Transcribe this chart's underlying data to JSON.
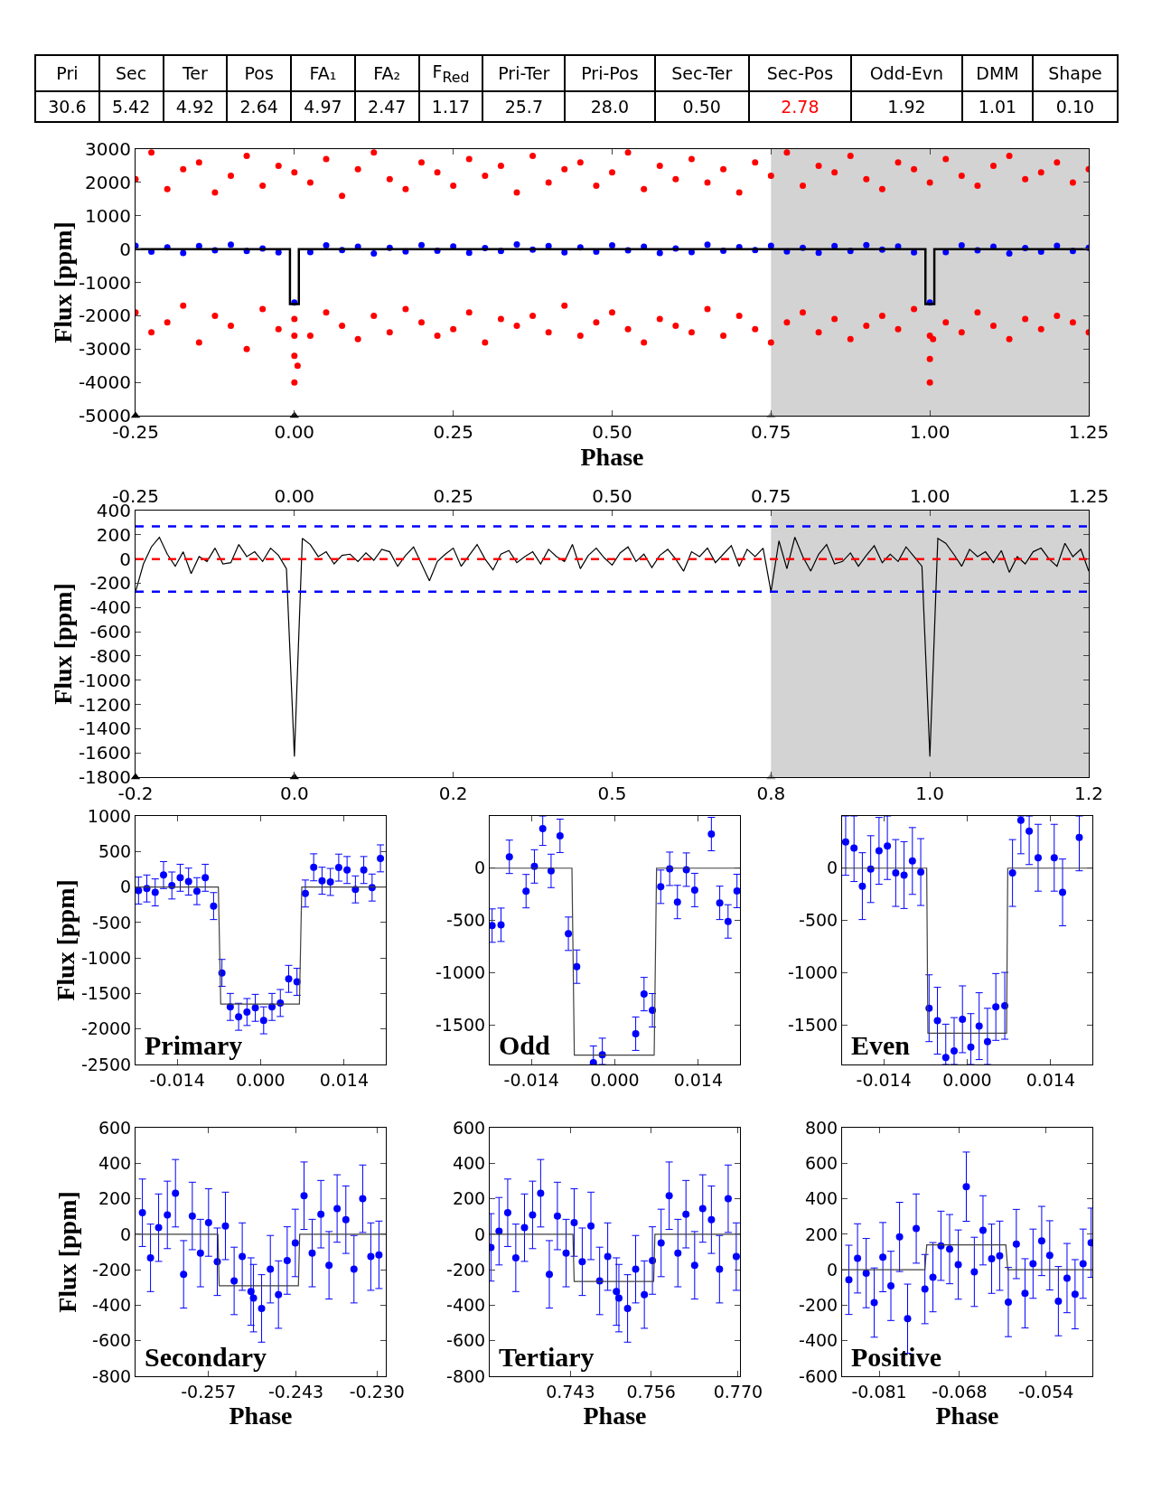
{
  "chart_data": [
    {
      "type": "other",
      "categories": [
        "Pri",
        "Sec",
        "Ter",
        "Pos",
        "FA₁",
        "FA₂",
        "F$_{Red}$",
        "Pri-Ter",
        "Pri-Pos",
        "Sec-Ter",
        "Sec-Pos",
        "Odd-Evn",
        "DMM",
        "Shape"
      ],
      "value_labels": [
        "30.6",
        "5.42",
        "4.92",
        "2.64",
        "4.97",
        "2.47",
        "1.17",
        "25.7",
        "28.0",
        "0.50",
        "2.78",
        "1.92",
        "1.01",
        "0.10"
      ],
      "colors": [
        "#000000",
        "#000000",
        "#000000",
        "#000000",
        "#000000",
        "#000000",
        "#000000",
        "#000000",
        "#000000",
        "#000000",
        "#ff0000",
        "#000000",
        "#000000",
        "#000000"
      ]
    },
    {
      "type": "scatter",
      "xlabel": "Phase",
      "ylabel": "Flux [ppm]",
      "xlim": [
        -0.25,
        1.25
      ],
      "ylim": [
        -5000,
        3000
      ],
      "xticks": [
        -0.25,
        {
          "value": 0,
          "label": "0.00"
        },
        0.25,
        {
          "value": 0.5,
          "label": "0.50"
        },
        0.75,
        {
          "value": 1,
          "label": "1.00"
        },
        1.25
      ],
      "yticks": [
        -5000,
        -4000,
        -3000,
        -2000,
        -1000,
        0,
        1000,
        2000,
        3000
      ],
      "bands": [
        {
          "axis": "x",
          "from": 0.75,
          "to": 1.25,
          "color": "#d3d3d3"
        }
      ],
      "series": [
        {
          "type": "scatter",
          "marker": "circle",
          "color": "#ff0000",
          "x": [
            -0.25,
            -0.225,
            -0.2,
            -0.175,
            -0.15,
            -0.125,
            -0.1,
            -0.075,
            -0.05,
            -0.025,
            0,
            0.025,
            0.05,
            0.075,
            0.1,
            0.125,
            0.15,
            0.175,
            0.2,
            0.225,
            0.25,
            0.275,
            0.3,
            0.325,
            0.35,
            0.375,
            0.4,
            0.425,
            0.45,
            0.475,
            0.5,
            0.525,
            0.55,
            0.575,
            0.6,
            0.625,
            0.65,
            0.675,
            0.7,
            0.725,
            0.75,
            0.775,
            0.8,
            0.825,
            0.85,
            0.875,
            0.9,
            0.925,
            0.95,
            0.975,
            1,
            1.025,
            1.05,
            1.075,
            1.1,
            1.125,
            1.15,
            1.175,
            1.2,
            1.225,
            1.25,
            -0.25,
            -0.225,
            -0.2,
            -0.175,
            -0.15,
            -0.125,
            -0.1,
            -0.075,
            -0.05,
            -0.025,
            0,
            0.025,
            0.05,
            0.075,
            0.1,
            0.125,
            0.15,
            0.175,
            0.2,
            0.225,
            0.25,
            0.275,
            0.3,
            0.325,
            0.35,
            0.375,
            0.4,
            0.425,
            0.45,
            0.475,
            0.5,
            0.525,
            0.55,
            0.575,
            0.6,
            0.625,
            0.65,
            0.675,
            0.7,
            0.725,
            0.75,
            0.775,
            0.8,
            0.825,
            0.85,
            0.875,
            0.9,
            0.925,
            0.95,
            0.975,
            1,
            1.025,
            1.05,
            1.075,
            1.1,
            1.125,
            1.15,
            1.175,
            1.2,
            1.225,
            1.25,
            0,
            0,
            0,
            0.005,
            1,
            1,
            1.005
          ],
          "values": [
            2100,
            2900,
            1800,
            2400,
            2600,
            1700,
            2200,
            2800,
            1900,
            2500,
            2300,
            2000,
            2700,
            1600,
            2400,
            2900,
            2100,
            1800,
            2600,
            2300,
            1900,
            2700,
            2200,
            2500,
            1700,
            2800,
            2000,
            2400,
            2600,
            1900,
            2300,
            2900,
            1800,
            2500,
            2100,
            2700,
            2000,
            2400,
            1700,
            2600,
            2200,
            2900,
            1900,
            2500,
            2300,
            2800,
            2100,
            1800,
            2600,
            2400,
            2000,
            2700,
            2200,
            1900,
            2500,
            2800,
            2100,
            2300,
            2600,
            2000,
            2400,
            -1900,
            -2500,
            -2200,
            -1700,
            -2800,
            -2000,
            -2300,
            -3000,
            -1800,
            -2400,
            -2100,
            -2600,
            -1900,
            -2300,
            -2700,
            -2000,
            -2500,
            -1800,
            -2200,
            -2600,
            -2400,
            -1900,
            -2800,
            -2100,
            -2300,
            -2000,
            -2500,
            -1700,
            -2600,
            -2200,
            -1900,
            -2400,
            -2800,
            -2100,
            -2300,
            -2500,
            -1800,
            -2600,
            -2000,
            -2400,
            -2800,
            -2200,
            -1900,
            -2500,
            -2100,
            -2700,
            -2300,
            -2000,
            -2400,
            -1800,
            -2600,
            -2200,
            -2500,
            -1900,
            -2300,
            -2700,
            -2100,
            -2400,
            -2000,
            -2200,
            -2500,
            -4000,
            -3200,
            -2600,
            -3500,
            -4000,
            -3300,
            -2700
          ]
        },
        {
          "type": "scatter",
          "marker": "circle",
          "color": "#0000ff",
          "x": [
            -0.25,
            -0.225,
            -0.2,
            -0.175,
            -0.15,
            -0.125,
            -0.1,
            -0.075,
            -0.05,
            -0.025,
            0,
            0.025,
            0.05,
            0.075,
            0.1,
            0.125,
            0.15,
            0.175,
            0.2,
            0.225,
            0.25,
            0.275,
            0.3,
            0.325,
            0.35,
            0.375,
            0.4,
            0.425,
            0.45,
            0.475,
            0.5,
            0.525,
            0.55,
            0.575,
            0.6,
            0.625,
            0.65,
            0.675,
            0.7,
            0.725,
            0.75,
            0.775,
            0.8,
            0.825,
            0.85,
            0.875,
            0.9,
            0.925,
            0.95,
            0.975,
            1,
            1.025,
            1.05,
            1.075,
            1.1,
            1.125,
            1.15,
            1.175,
            1.2,
            1.225,
            1.25
          ],
          "values": [
            100,
            -80,
            50,
            -120,
            90,
            -40,
            130,
            -60,
            20,
            -100,
            -1600,
            -90,
            110,
            -30,
            70,
            -130,
            40,
            -70,
            120,
            -50,
            80,
            -110,
            30,
            -60,
            140,
            -20,
            90,
            -100,
            50,
            -80,
            110,
            -40,
            70,
            -120,
            20,
            -90,
            130,
            -50,
            60,
            -30,
            100,
            -70,
            40,
            -110,
            90,
            -60,
            120,
            -20,
            80,
            -100,
            -1600,
            -90,
            110,
            -40,
            70,
            -130,
            30,
            -80,
            100,
            -60,
            40
          ]
        },
        {
          "type": "line",
          "color": "#000000",
          "x": [
            -0.25,
            -0.007,
            -0.007,
            0.007,
            0.007,
            0.993,
            0.993,
            1.007,
            1.007,
            1.25
          ],
          "values": [
            0,
            0,
            -1650,
            -1650,
            0,
            0,
            -1650,
            -1650,
            0,
            0
          ]
        },
        {
          "type": "scatter",
          "marker": "triangle",
          "color": "#000000",
          "x": [
            -0.25,
            0
          ],
          "values": [
            -5000,
            -5000
          ]
        },
        {
          "type": "scatter",
          "marker": "triangle",
          "color": "#a0a0a0",
          "x": [
            0.75
          ],
          "values": [
            -5000
          ]
        }
      ]
    },
    {
      "type": "line",
      "ylabel": "Flux [ppm]",
      "xlim": [
        -0.25,
        1.25
      ],
      "ylim": [
        -1800,
        400
      ],
      "xticks": [
        {
          "value": -0.25,
          "label": "-0.2"
        },
        {
          "value": 0,
          "label": "0.0"
        },
        {
          "value": 0.25,
          "label": "0.2"
        },
        {
          "value": 0.5,
          "label": "0.5"
        },
        {
          "value": 0.75,
          "label": "0.8"
        },
        {
          "value": 1,
          "label": "1.0"
        },
        {
          "value": 1.25,
          "label": "1.2"
        }
      ],
      "x2lim": [
        -0.25,
        1.25
      ],
      "x2ticks": [
        -0.25,
        {
          "value": 0,
          "label": "0.00"
        },
        0.25,
        {
          "value": 0.5,
          "label": "0.50"
        },
        0.75,
        {
          "value": 1,
          "label": "1.00"
        },
        1.25
      ],
      "yticks": [
        -1800,
        -1600,
        -1400,
        -1200,
        -1000,
        -800,
        -600,
        -400,
        -200,
        0,
        200,
        400
      ],
      "bands": [
        {
          "axis": "x",
          "from": 0.75,
          "to": 1.25,
          "color": "#d3d3d3"
        }
      ],
      "ref_lines": [
        {
          "axis": "y",
          "value": 270,
          "color": "#0000ff",
          "line_style": "dashed"
        },
        {
          "axis": "y",
          "value": 0,
          "color": "#ff0000",
          "line_style": "dashed"
        },
        {
          "axis": "y",
          "value": -270,
          "color": "#0000ff",
          "line_style": "dashed"
        }
      ],
      "series": [
        {
          "type": "line",
          "color": "#000000",
          "x": [
            -0.25,
            -0.2375,
            -0.225,
            -0.2125,
            -0.2,
            -0.1875,
            -0.175,
            -0.1625,
            -0.15,
            -0.1375,
            -0.125,
            -0.1125,
            -0.1,
            -0.0875,
            -0.075,
            -0.0625,
            -0.05,
            -0.0375,
            -0.025,
            -0.0125,
            0,
            0.0125,
            0.025,
            0.0375,
            0.05,
            0.0625,
            0.075,
            0.0875,
            0.1,
            0.1125,
            0.125,
            0.1375,
            0.15,
            0.1625,
            0.175,
            0.1875,
            0.2,
            0.2125,
            0.225,
            0.2375,
            0.25,
            0.2625,
            0.275,
            0.2875,
            0.3,
            0.3125,
            0.325,
            0.3375,
            0.35,
            0.3625,
            0.375,
            0.3875,
            0.4,
            0.4125,
            0.425,
            0.4375,
            0.45,
            0.4625,
            0.475,
            0.4875,
            0.5,
            0.5125,
            0.525,
            0.5375,
            0.55,
            0.5625,
            0.575,
            0.5875,
            0.6,
            0.6125,
            0.625,
            0.6375,
            0.65,
            0.6625,
            0.675,
            0.6875,
            0.7,
            0.7125,
            0.725,
            0.7375,
            0.75,
            0.7625,
            0.775,
            0.7875,
            0.8,
            0.8125,
            0.825,
            0.8375,
            0.85,
            0.8625,
            0.875,
            0.8875,
            0.9,
            0.9125,
            0.925,
            0.9375,
            0.95,
            0.9625,
            0.975,
            0.9875,
            1,
            1.0125,
            1.025,
            1.0375,
            1.05,
            1.0625,
            1.075,
            1.0875,
            1.1,
            1.1125,
            1.125,
            1.1375,
            1.15,
            1.1625,
            1.175,
            1.1875,
            1.2,
            1.2125,
            1.225,
            1.2375,
            1.25
          ],
          "values": [
            -270,
            -40,
            100,
            180,
            40,
            -60,
            60,
            -120,
            20,
            -20,
            90,
            -40,
            -30,
            120,
            20,
            60,
            -20,
            90,
            30,
            -80,
            -1630,
            170,
            120,
            20,
            60,
            -40,
            30,
            40,
            -20,
            50,
            -10,
            80,
            60,
            -60,
            30,
            100,
            -40,
            -180,
            -20,
            40,
            90,
            -60,
            30,
            120,
            0,
            -90,
            40,
            70,
            -30,
            20,
            60,
            -40,
            80,
            20,
            -20,
            120,
            -80,
            30,
            90,
            10,
            -50,
            50,
            100,
            -20,
            40,
            -70,
            30,
            80,
            0,
            -100,
            60,
            20,
            90,
            -30,
            40,
            110,
            -60,
            80,
            20,
            90,
            -270,
            150,
            -80,
            180,
            20,
            -100,
            40,
            120,
            -40,
            -20,
            50,
            -60,
            30,
            110,
            -30,
            40,
            -20,
            100,
            20,
            -60,
            -1630,
            170,
            130,
            40,
            -60,
            80,
            20,
            60,
            -30,
            70,
            -110,
            20,
            -40,
            60,
            90,
            0,
            -60,
            130,
            20,
            80,
            -100
          ]
        },
        {
          "type": "scatter",
          "marker": "triangle",
          "color": "#000000",
          "x": [
            -0.25,
            0
          ],
          "values": [
            -1800,
            -1800
          ]
        },
        {
          "type": "scatter",
          "marker": "triangle",
          "color": "#a0a0a0",
          "x": [
            0.75
          ],
          "values": [
            -1800
          ]
        }
      ]
    },
    {
      "type": "scatter",
      "ylabel": "Flux [ppm]",
      "xlim": [
        -0.021,
        0.021
      ],
      "ylim": [
        -2500,
        1000
      ],
      "xticks": [
        -0.014,
        {
          "value": 0,
          "label": "0.000"
        },
        0.014
      ],
      "yticks": [
        -2500,
        -2000,
        -1500,
        -1000,
        -500,
        0,
        500,
        1000
      ],
      "annotations": [
        "Primary"
      ],
      "series": [
        {
          "type": "scatter",
          "marker": "circle",
          "color": "#0000ff",
          "x": [
            -0.0205,
            -0.0191,
            -0.0177,
            -0.0163,
            -0.0149,
            -0.0135,
            -0.0121,
            -0.0107,
            -0.0093,
            -0.0079,
            -0.0065,
            -0.0051,
            -0.0037,
            -0.0023,
            -0.0009,
            0.0005,
            0.0019,
            0.0033,
            0.0047,
            0.0061,
            0.0075,
            0.0089,
            0.0103,
            0.0117,
            0.0131,
            0.0145,
            0.0159,
            0.0173,
            0.0187,
            0.0201
          ],
          "values": [
            -50,
            -21,
            -76,
            168,
            21,
            130,
            76,
            -59,
            130,
            -269,
            -1210,
            -1689,
            -1828,
            -1761,
            -1702,
            -1878,
            -1689,
            -1634,
            -1294,
            -1336,
            -92,
            277,
            88,
            71,
            273,
            239,
            -34,
            239,
            -8,
            403
          ],
          "errors": [
            190,
            190,
            190,
            190,
            190,
            190,
            190,
            190,
            190,
            190,
            190,
            190,
            190,
            190,
            190,
            190,
            190,
            190,
            190,
            190,
            190,
            190,
            190,
            190,
            190,
            190,
            190,
            190,
            190,
            190
          ]
        },
        {
          "type": "line",
          "color": "#404040",
          "x": [
            -0.021,
            -0.0071,
            -0.0067,
            0.0065,
            0.0069,
            0.021
          ],
          "values": [
            0,
            0,
            -1650,
            -1650,
            0,
            0
          ]
        }
      ]
    },
    {
      "type": "scatter",
      "xlim": [
        -0.021,
        0.021
      ],
      "ylim": [
        -1880,
        500
      ],
      "xticks": [
        -0.014,
        {
          "value": 0,
          "label": "0.000"
        },
        0.014
      ],
      "yticks": [
        -1500,
        -1000,
        -500,
        0
      ],
      "annotations": [
        "Odd"
      ],
      "series": [
        {
          "type": "scatter",
          "marker": "circle",
          "color": "#0000ff",
          "x": [
            -0.0206,
            -0.0191,
            -0.0177,
            -0.0149,
            -0.0135,
            -0.0121,
            -0.0107,
            -0.0092,
            -0.0078,
            -0.0064,
            -0.0036,
            -0.0021,
            0.0035,
            0.0049,
            0.0063,
            0.0077,
            0.0092,
            0.0105,
            0.012,
            0.0134,
            0.0162,
            0.0176,
            0.019,
            0.0205
          ],
          "values": [
            -550,
            -542,
            109,
            -220,
            17,
            378,
            -26,
            310,
            -628,
            -943,
            -1863,
            -1788,
            -1585,
            -1206,
            -1361,
            -178,
            -6,
            -324,
            -14,
            -209,
            327,
            -332,
            -510,
            -218
          ],
          "errors": [
            160,
            160,
            160,
            160,
            160,
            [
              218,
              500
            ],
            160,
            160,
            160,
            160,
            [
              -1880,
              -1703
            ],
            [
              -1880,
              -1628
            ],
            160,
            160,
            160,
            160,
            160,
            160,
            160,
            160,
            160,
            160,
            160,
            160
          ]
        },
        {
          "type": "line",
          "color": "#404040",
          "x": [
            -0.021,
            -0.0072,
            -0.0068,
            0.0066,
            0.007,
            0.021
          ],
          "values": [
            0,
            0,
            -1790,
            -1790,
            0,
            0
          ]
        }
      ]
    },
    {
      "type": "scatter",
      "xlim": [
        -0.021,
        0.021
      ],
      "ylim": [
        -1880,
        500
      ],
      "xticks": [
        -0.014,
        {
          "value": 0,
          "label": "0.000"
        },
        0.014
      ],
      "yticks": [
        -1500,
        -1000,
        -500,
        0
      ],
      "annotations": [
        "Even"
      ],
      "series": [
        {
          "type": "scatter",
          "marker": "circle",
          "color": "#0000ff",
          "x": [
            -0.0204,
            -0.019,
            -0.0176,
            -0.0162,
            -0.0148,
            -0.0134,
            -0.012,
            -0.0106,
            -0.0092,
            -0.0078,
            -0.0064,
            -0.005,
            -0.0036,
            -0.0022,
            -0.0008,
            0.0006,
            0.002,
            0.0034,
            0.0048,
            0.0063,
            0.0076,
            0.009,
            0.0104,
            0.0119,
            0.0146,
            0.016,
            0.0188
          ],
          "values": [
            252,
            192,
            -172,
            -9,
            166,
            212,
            -46,
            -66,
            69,
            -37,
            -1341,
            -1461,
            -1814,
            -1751,
            -1447,
            -1713,
            -1513,
            -1662,
            -1329,
            -1318,
            -46,
            458,
            355,
            100,
            100,
            -232,
            295
          ],
          "errors": [
            [
              -68,
              500
            ],
            [
              -128,
              500
            ],
            320,
            320,
            320,
            [
              -108,
              500
            ],
            320,
            320,
            320,
            320,
            320,
            320,
            [
              -1880,
              -1494
            ],
            [
              -1880,
              -1431
            ],
            320,
            [
              -1880,
              -1393
            ],
            320,
            [
              -1880,
              -1342
            ],
            320,
            320,
            320,
            [
              138,
              500
            ],
            [
              35,
              500
            ],
            320,
            320,
            320,
            [
              -25,
              500
            ]
          ]
        },
        {
          "type": "line",
          "color": "#404040",
          "x": [
            -0.021,
            -0.0068,
            -0.0066,
            0.0066,
            0.0068,
            0.021
          ],
          "values": [
            0,
            0,
            -1580,
            -1580,
            0,
            0
          ]
        }
      ]
    },
    {
      "type": "scatter",
      "xlabel": "Phase",
      "ylabel": "Flux [ppm]",
      "xlim": [
        -0.2687,
        -0.2286
      ],
      "ylim": [
        -800,
        600
      ],
      "xticks": [
        -0.257,
        -0.243,
        {
          "value": -0.23,
          "label": "-0.230"
        }
      ],
      "yticks": [
        -800,
        -600,
        -400,
        -200,
        0,
        200,
        400,
        600
      ],
      "annotations": [
        "Secondary"
      ],
      "series": [
        {
          "type": "scatter",
          "marker": "circle",
          "color": "#0000ff",
          "x": [
            -0.2676,
            -0.2663,
            -0.265,
            -0.2636,
            -0.2623,
            -0.261,
            -0.2596,
            -0.2583,
            -0.257,
            -0.2556,
            -0.2543,
            -0.2529,
            -0.2516,
            -0.2502,
            -0.2498,
            -0.2485,
            -0.2471,
            -0.2458,
            -0.2444,
            -0.2431,
            -0.2417,
            -0.2404,
            -0.239,
            -0.2377,
            -0.2364,
            -0.235,
            -0.2337,
            -0.2323,
            -0.231,
            -0.2297
          ],
          "values": [
            121,
            -133,
            37,
            109,
            231,
            -226,
            103,
            -106,
            66,
            -155,
            47,
            -263,
            -126,
            -323,
            -360,
            -418,
            -197,
            -340,
            -148,
            -49,
            217,
            -106,
            113,
            -175,
            145,
            82,
            -197,
            200,
            -126,
            -116
          ],
          "errors": [
            190,
            190,
            190,
            190,
            190,
            190,
            190,
            190,
            190,
            190,
            190,
            190,
            190,
            190,
            190,
            190,
            190,
            190,
            190,
            190,
            190,
            190,
            190,
            190,
            190,
            190,
            190,
            190,
            190,
            190
          ]
        },
        {
          "type": "line",
          "color": "#404040",
          "x": [
            -0.2687,
            -0.2555,
            -0.2553,
            -0.2426,
            -0.2424,
            -0.2286
          ],
          "values": [
            0,
            0,
            -290,
            -290,
            0,
            0
          ]
        }
      ]
    },
    {
      "type": "scatter",
      "xlabel": "Phase",
      "xlim": [
        0.73,
        0.7703
      ],
      "ylim": [
        -800,
        600
      ],
      "xticks": [
        0.743,
        0.756,
        {
          "value": 0.77,
          "label": "0.770"
        }
      ],
      "yticks": [
        -800,
        -600,
        -400,
        -200,
        0,
        200,
        400,
        600
      ],
      "annotations": [
        "Tertiary"
      ],
      "series": [
        {
          "type": "scatter",
          "marker": "circle",
          "color": "#0000ff",
          "x": [
            0.7302,
            0.7315,
            0.7329,
            0.7342,
            0.7356,
            0.7369,
            0.7382,
            0.7396,
            0.7409,
            0.7423,
            0.7436,
            0.7449,
            0.7463,
            0.7477,
            0.749,
            0.7504,
            0.7508,
            0.7522,
            0.7535,
            0.7549,
            0.7562,
            0.7576,
            0.7589,
            0.7603,
            0.7616,
            0.763,
            0.7643,
            0.7657,
            0.767,
            0.7684,
            0.7697
          ],
          "values": [
            -74,
            17,
            121,
            -133,
            37,
            109,
            231,
            -226,
            103,
            -106,
            66,
            -155,
            47,
            -263,
            -126,
            -323,
            -360,
            -418,
            -197,
            -340,
            -148,
            -49,
            217,
            -106,
            113,
            -175,
            145,
            82,
            -197,
            200,
            -126
          ],
          "errors": [
            190,
            190,
            190,
            190,
            190,
            190,
            190,
            190,
            190,
            190,
            190,
            190,
            190,
            190,
            190,
            190,
            190,
            190,
            190,
            190,
            190,
            190,
            190,
            190,
            190,
            190,
            190,
            190,
            190,
            190,
            190
          ]
        },
        {
          "type": "line",
          "color": "#404040",
          "x": [
            0.73,
            0.7434,
            0.7436,
            0.7564,
            0.7566,
            0.7703
          ],
          "values": [
            0,
            0,
            -266,
            -266,
            0,
            0
          ]
        }
      ]
    },
    {
      "type": "scatter",
      "xlabel": "Phase",
      "xlim": [
        -0.087,
        -0.0465
      ],
      "ylim": [
        -600,
        800
      ],
      "xticks": [
        -0.081,
        -0.068,
        -0.054
      ],
      "yticks": [
        -600,
        -400,
        -200,
        0,
        200,
        400,
        600,
        800
      ],
      "annotations": [
        "Positive"
      ],
      "series": [
        {
          "type": "scatter",
          "marker": "circle",
          "color": "#0000ff",
          "x": [
            -0.0859,
            -0.0845,
            -0.0831,
            -0.0818,
            -0.0804,
            -0.0791,
            -0.0777,
            -0.0764,
            -0.075,
            -0.0736,
            -0.0723,
            -0.071,
            -0.0696,
            -0.0682,
            -0.0669,
            -0.0656,
            -0.0642,
            -0.0628,
            -0.0615,
            -0.0601,
            -0.0588,
            -0.0574,
            -0.0561,
            -0.0547,
            -0.0534,
            -0.052,
            -0.0506,
            -0.0493,
            -0.048,
            -0.0467
          ],
          "values": [
            -57,
            64,
            -19,
            -185,
            71,
            -91,
            185,
            -276,
            232,
            -109,
            -42,
            135,
            116,
            29,
            468,
            -12,
            222,
            62,
            79,
            -182,
            145,
            -133,
            34,
            162,
            81,
            -177,
            -47,
            -138,
            34,
            152
          ],
          "errors": [
            195,
            195,
            195,
            195,
            195,
            195,
            195,
            195,
            195,
            195,
            195,
            195,
            195,
            195,
            195,
            195,
            195,
            195,
            195,
            195,
            195,
            195,
            195,
            195,
            195,
            195,
            195,
            195,
            195,
            195
          ]
        },
        {
          "type": "line",
          "color": "#404040",
          "x": [
            -0.087,
            -0.0736,
            -0.0733,
            -0.0605,
            -0.0602,
            -0.0465
          ],
          "values": [
            0,
            0,
            140,
            140,
            0,
            0
          ]
        }
      ]
    }
  ]
}
